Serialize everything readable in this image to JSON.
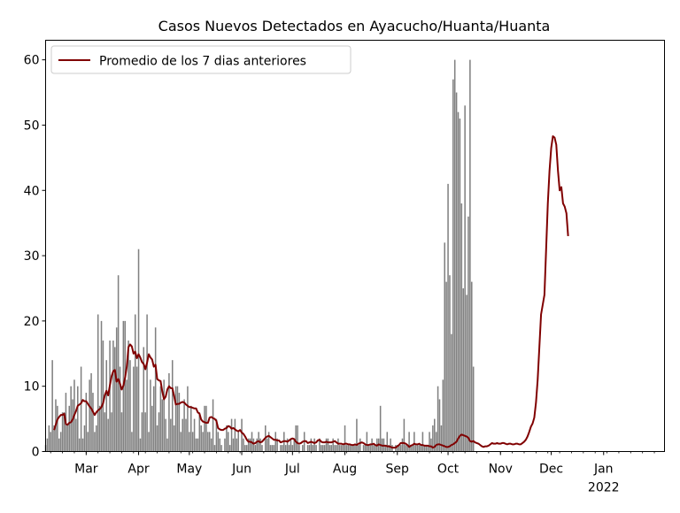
{
  "chart_data": {
    "type": "bar",
    "title": "Casos Nuevos Detectados en Ayacucho/Huanta/Huanta",
    "xlabel": "",
    "ylabel": "",
    "ylim": [
      0,
      63
    ],
    "yticks": [
      0,
      10,
      20,
      30,
      40,
      50,
      60
    ],
    "x_start": "2021-02-05",
    "x_end": "2022-02-06",
    "xticks": [
      {
        "date": "2021-03-01",
        "label": "Mar",
        "sublabel": ""
      },
      {
        "date": "2021-04-01",
        "label": "Apr",
        "sublabel": ""
      },
      {
        "date": "2021-05-01",
        "label": "May",
        "sublabel": ""
      },
      {
        "date": "2021-06-01",
        "label": "Jun",
        "sublabel": ""
      },
      {
        "date": "2021-07-01",
        "label": "Jul",
        "sublabel": ""
      },
      {
        "date": "2021-08-01",
        "label": "Aug",
        "sublabel": ""
      },
      {
        "date": "2021-09-01",
        "label": "Sep",
        "sublabel": ""
      },
      {
        "date": "2021-10-01",
        "label": "Oct",
        "sublabel": ""
      },
      {
        "date": "2021-11-01",
        "label": "Nov",
        "sublabel": ""
      },
      {
        "date": "2021-12-01",
        "label": "Dec",
        "sublabel": ""
      },
      {
        "date": "2022-01-01",
        "label": "Jan",
        "sublabel": "2022"
      }
    ],
    "legend": {
      "placement": "top-left",
      "entries": [
        "Promedio de los 7 dias anteriores"
      ]
    },
    "colors": {
      "bars": "#808080",
      "line": "#800000"
    },
    "series": [
      {
        "type": "bar",
        "start_date": "2021-02-05",
        "values": [
          1,
          2,
          4,
          3,
          14,
          4,
          8,
          7,
          2,
          3,
          6,
          6,
          9,
          4,
          7,
          10,
          8,
          11,
          5,
          10,
          2,
          13,
          2,
          4,
          9,
          3,
          11,
          12,
          9,
          3,
          4,
          21,
          7,
          20,
          17,
          6,
          14,
          5,
          17,
          6,
          17,
          16,
          19,
          27,
          13,
          6,
          20,
          20,
          11,
          17,
          14,
          3,
          13,
          21,
          13,
          31,
          2,
          6,
          16,
          6,
          21,
          3,
          11,
          7,
          10,
          19,
          4,
          6,
          10,
          8,
          11,
          5,
          2,
          12,
          5,
          14,
          4,
          10,
          10,
          9,
          3,
          5,
          8,
          5,
          10,
          3,
          7,
          3,
          5,
          2,
          2,
          6,
          4,
          3,
          7,
          7,
          3,
          3,
          2,
          8,
          1,
          5,
          3,
          2,
          1,
          0,
          2,
          4,
          3,
          1,
          5,
          2,
          5,
          2,
          3,
          0,
          5,
          2,
          1,
          1,
          2,
          2,
          3,
          2,
          1,
          2,
          3,
          2,
          1,
          0,
          4,
          2,
          3,
          1,
          1,
          1,
          3,
          2,
          0,
          1,
          1,
          3,
          1,
          2,
          1,
          2,
          1,
          2,
          4,
          4,
          1,
          0,
          1,
          3,
          0,
          1,
          1,
          2,
          1,
          2,
          1,
          0,
          2,
          1,
          1,
          1,
          2,
          2,
          1,
          1,
          2,
          1,
          1,
          2,
          1,
          1,
          1,
          4,
          1,
          1,
          1,
          1,
          1,
          1,
          5,
          1,
          2,
          0,
          1,
          1,
          3,
          1,
          1,
          2,
          1,
          1,
          2,
          2,
          7,
          2,
          2,
          1,
          3,
          1,
          2,
          1,
          0,
          1,
          1,
          1,
          1,
          2,
          5,
          1,
          1,
          3,
          1,
          1,
          3,
          1,
          1,
          1,
          1,
          3,
          1,
          1,
          1,
          3,
          2,
          4,
          5,
          3,
          10,
          8,
          4,
          11,
          32,
          26,
          41,
          27,
          18,
          57,
          60,
          55,
          52,
          51,
          38,
          25,
          53,
          24,
          36,
          60,
          26,
          13
        ]
      },
      {
        "type": "line",
        "name": "Promedio de los 7 dias anteriores",
        "start_date": "2021-02-10",
        "values": [
          3.3,
          4.1,
          4.9,
          5.3,
          5.6,
          5.6,
          5.8,
          4.2,
          4.1,
          4.4,
          4.5,
          4.9,
          5.6,
          6.2,
          7.0,
          7.2,
          7.4,
          7.9,
          7.7,
          7.7,
          7.3,
          6.9,
          6.6,
          6.1,
          5.6,
          6.0,
          6.3,
          6.5,
          6.8,
          7.4,
          8.6,
          9.3,
          8.6,
          10.1,
          11.5,
          12.3,
          12.5,
          10.7,
          11.1,
          10.4,
          9.5,
          10.1,
          11.3,
          13.0,
          16.0,
          16.4,
          16.1,
          15.0,
          15.3,
          14.3,
          14.9,
          14.4,
          13.7,
          13.4,
          12.6,
          13.6,
          14.9,
          14.4,
          14.1,
          13.0,
          13.3,
          11.1,
          10.9,
          10.8,
          9.2,
          8.0,
          8.4,
          9.5,
          10.0,
          9.7,
          9.7,
          8.5,
          7.2,
          7.3,
          7.3,
          7.5,
          7.6,
          7.5,
          7.2,
          7.0,
          6.8,
          6.8,
          6.7,
          6.6,
          6.6,
          6.0,
          5.8,
          4.9,
          4.6,
          4.5,
          4.4,
          4.4,
          5.2,
          5.3,
          5.1,
          5.0,
          4.7,
          3.6,
          3.4,
          3.3,
          3.3,
          3.5,
          3.6,
          3.9,
          3.8,
          3.5,
          3.6,
          3.4,
          3.2,
          3.1,
          3.3,
          2.9,
          2.7,
          2.3,
          1.8,
          1.5,
          1.5,
          1.4,
          1.2,
          1.3,
          1.5,
          1.6,
          1.4,
          1.5,
          1.8,
          2.1,
          2.3,
          2.4,
          2.2,
          2.0,
          1.8,
          1.8,
          1.7,
          1.7,
          1.4,
          1.5,
          1.6,
          1.6,
          1.5,
          1.7,
          1.9,
          2.0,
          1.9,
          1.5,
          1.3,
          1.2,
          1.3,
          1.5,
          1.6,
          1.6,
          1.3,
          1.4,
          1.5,
          1.4,
          1.3,
          1.4,
          1.7,
          1.8,
          1.5,
          1.4,
          1.4,
          1.5,
          1.4,
          1.4,
          1.4,
          1.5,
          1.6,
          1.4,
          1.2,
          1.2,
          1.2,
          1.1,
          1.2,
          1.2,
          1.1,
          1.1,
          1.0,
          1.0,
          1.1,
          1.0,
          1.2,
          1.3,
          1.4,
          1.3,
          1.1,
          1.0,
          1.0,
          1.1,
          1.1,
          1.2,
          1.0,
          0.9,
          1.1,
          1.0,
          0.9,
          0.9,
          0.9,
          0.8,
          0.8,
          0.7,
          0.6,
          0.6,
          0.6,
          0.8,
          1.0,
          1.3,
          1.3,
          1.3,
          1.2,
          1.0,
          0.7,
          0.9,
          1.0,
          1.2,
          1.1,
          1.1,
          1.2,
          1.0,
          1.0,
          0.9,
          0.9,
          0.9,
          0.8,
          0.8,
          0.6,
          0.7,
          1.0,
          1.1,
          1.1,
          1.0,
          0.9,
          0.8,
          0.7,
          0.7,
          0.8,
          1.0,
          1.1,
          1.3,
          1.5,
          2.0,
          2.4,
          2.6,
          2.5,
          2.4,
          2.3,
          2.1,
          1.6,
          1.5,
          1.6,
          1.4,
          1.3,
          1.2,
          1.0,
          0.8,
          0.7,
          0.8,
          0.8,
          0.9,
          1.1,
          1.3,
          1.2,
          1.2,
          1.3,
          1.2,
          1.2,
          1.3,
          1.3,
          1.2,
          1.1,
          1.2,
          1.2,
          1.1,
          1.1,
          1.2,
          1.2,
          1.1,
          1.1,
          1.3,
          1.5,
          1.8,
          2.3,
          3.0,
          3.8,
          4.3,
          5.2,
          7.5,
          11.0,
          16.0,
          21.0,
          22.5,
          24.0,
          31.0,
          38.0,
          43.0,
          46.5,
          48.3,
          48.1,
          47.0,
          43.0,
          40.0,
          40.5,
          38.0,
          37.5,
          36.5,
          33.0
        ]
      }
    ]
  }
}
